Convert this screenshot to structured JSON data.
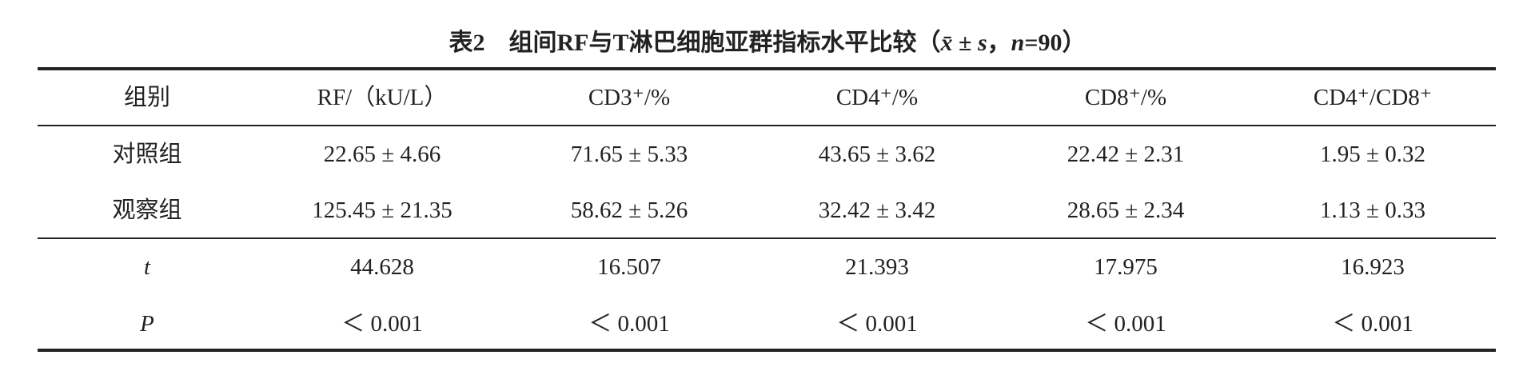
{
  "title": {
    "number": "表2",
    "parts": [
      "组间RF与T淋巴细胞亚群指标水平比较（",
      "x̄",
      " ± ",
      "s",
      "，",
      "n",
      "=90）"
    ]
  },
  "table": {
    "header": [
      "组别",
      "RF/（kU/L）",
      "CD3⁺/%",
      "CD4⁺/%",
      "CD8⁺/%",
      "CD4⁺/CD8⁺"
    ],
    "rows": [
      [
        "对照组",
        "22.65 ± 4.66",
        "71.65 ± 5.33",
        "43.65 ± 3.62",
        "22.42 ± 2.31",
        "1.95 ± 0.32"
      ],
      [
        "观察组",
        "125.45 ± 21.35",
        "58.62 ± 5.26",
        "32.42 ± 3.42",
        "28.65 ± 2.34",
        "1.13 ± 0.33"
      ],
      [
        "t",
        "44.628",
        "16.507",
        "21.393",
        "17.975",
        "16.923"
      ],
      [
        "P",
        "＜ 0.001",
        "＜ 0.001",
        "＜ 0.001",
        "＜ 0.001",
        "＜ 0.001"
      ]
    ]
  }
}
